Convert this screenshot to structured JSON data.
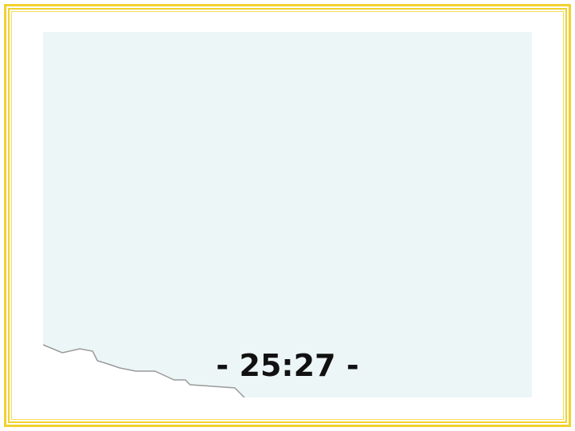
{
  "slide": {
    "caption": "- 25:27 -"
  },
  "colors": {
    "frame": "#f2d22e",
    "panel": "#ecf6f7",
    "torn_edge_line": "#9a9a9a",
    "caption_text": "#111111"
  }
}
